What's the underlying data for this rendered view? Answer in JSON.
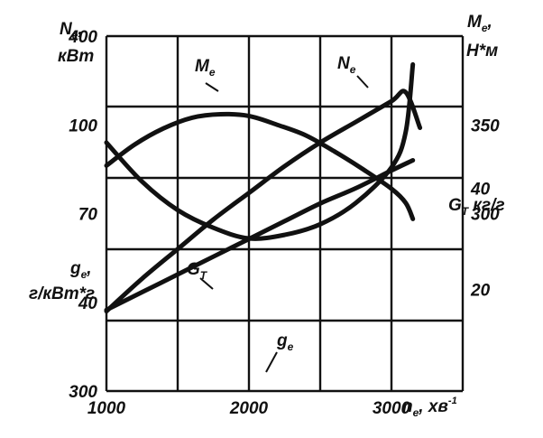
{
  "chart_data": {
    "type": "line",
    "x": {
      "label_main": "n",
      "label_sub": "e",
      "label_unit": ", хв",
      "label_sup": "-1",
      "range": [
        1000,
        3500
      ],
      "ticks": [
        "1000",
        "2000",
        "3000"
      ],
      "tick_values": [
        1000,
        2000,
        3000
      ]
    },
    "y_axes": {
      "Ne": {
        "label_main": "N",
        "label_sub": "e",
        "label_rest": ",",
        "unit": "кВт",
        "range": [
          10,
          130
        ],
        "ticks": [
          "40",
          "70",
          "100"
        ],
        "tick_values": [
          40,
          70,
          100
        ]
      },
      "ge": {
        "label_main": "g",
        "label_sub": "e",
        "label_rest": ",",
        "unit": "г/кВт*г",
        "range": [
          300,
          400
        ],
        "ticks": [
          "300",
          "400"
        ],
        "tick_values": [
          300,
          400
        ]
      },
      "Me": {
        "label_main": "M",
        "label_sub": "e",
        "label_rest": ",",
        "unit": "Н*м",
        "range": [
          200,
          400
        ],
        "ticks": [
          "300",
          "350"
        ],
        "tick_values": [
          300,
          350
        ]
      },
      "GT": {
        "label_main": "G",
        "label_sub": "T",
        "label_rest": " кг/г",
        "range": [
          0,
          70
        ],
        "ticks": [
          "20",
          "40"
        ],
        "tick_values": [
          20,
          40
        ]
      }
    },
    "series": [
      {
        "name": "M",
        "name_sub": "e",
        "axis": "Me",
        "x": [
          1000,
          1200,
          1400,
          1600,
          1800,
          2000,
          2200,
          2400,
          2600,
          2800,
          3000,
          3100,
          3150
        ],
        "y": [
          327,
          339,
          348,
          354,
          356,
          355,
          350,
          344,
          335,
          325,
          314,
          306,
          297
        ]
      },
      {
        "name": "N",
        "name_sub": "e",
        "axis": "Ne",
        "x": [
          1000,
          1250,
          1500,
          1750,
          2000,
          2250,
          2500,
          2750,
          3000,
          3100,
          3200
        ],
        "y": [
          37,
          48,
          58,
          68,
          77,
          86,
          94,
          101,
          108,
          111,
          99
        ]
      },
      {
        "name": "G",
        "name_sub": "T",
        "axis": "GT",
        "x": [
          1000,
          1250,
          1500,
          1750,
          2000,
          2250,
          2500,
          2750,
          3000,
          3150
        ],
        "y": [
          16,
          19.5,
          23,
          26.5,
          30,
          33.5,
          37,
          40,
          43.5,
          45.5
        ]
      },
      {
        "name": "g",
        "name_sub": "e",
        "axis": "ge",
        "x": [
          1000,
          1250,
          1500,
          1750,
          2000,
          2250,
          2500,
          2750,
          3000,
          3100,
          3150
        ],
        "y": [
          370,
          359,
          351,
          346,
          343,
          344,
          347,
          353,
          363,
          373,
          392
        ]
      }
    ]
  }
}
